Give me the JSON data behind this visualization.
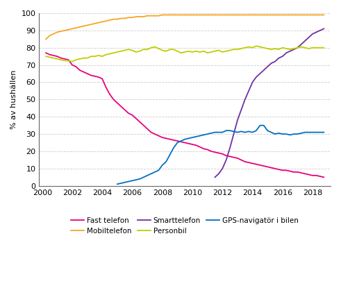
{
  "ylabel": "% av hushällen",
  "xlim": [
    1999.8,
    2019.2
  ],
  "ylim": [
    0,
    100
  ],
  "xticks": [
    2000,
    2002,
    2004,
    2006,
    2008,
    2010,
    2012,
    2014,
    2016,
    2018
  ],
  "yticks": [
    0,
    10,
    20,
    30,
    40,
    50,
    60,
    70,
    80,
    90,
    100
  ],
  "series": {
    "Fast telefon": {
      "color": "#E8007D",
      "data": [
        [
          2000.25,
          77
        ],
        [
          2000.5,
          76
        ],
        [
          2000.75,
          75.5
        ],
        [
          2001.0,
          75
        ],
        [
          2001.25,
          74
        ],
        [
          2001.5,
          73.5
        ],
        [
          2001.75,
          73
        ],
        [
          2002.0,
          70
        ],
        [
          2002.25,
          69
        ],
        [
          2002.5,
          67
        ],
        [
          2002.75,
          66
        ],
        [
          2003.0,
          65
        ],
        [
          2003.25,
          64
        ],
        [
          2003.5,
          63.5
        ],
        [
          2003.75,
          63
        ],
        [
          2004.0,
          62
        ],
        [
          2004.25,
          57
        ],
        [
          2004.5,
          53
        ],
        [
          2004.75,
          50
        ],
        [
          2005.0,
          48
        ],
        [
          2005.25,
          46
        ],
        [
          2005.5,
          44
        ],
        [
          2005.75,
          42
        ],
        [
          2006.0,
          41
        ],
        [
          2006.25,
          39
        ],
        [
          2006.5,
          37
        ],
        [
          2006.75,
          35
        ],
        [
          2007.0,
          33
        ],
        [
          2007.25,
          31
        ],
        [
          2007.5,
          30
        ],
        [
          2007.75,
          29
        ],
        [
          2008.0,
          28
        ],
        [
          2008.25,
          27.5
        ],
        [
          2008.5,
          27
        ],
        [
          2008.75,
          26.5
        ],
        [
          2009.0,
          26
        ],
        [
          2009.25,
          25.5
        ],
        [
          2009.5,
          25
        ],
        [
          2009.75,
          24.5
        ],
        [
          2010.0,
          24
        ],
        [
          2010.25,
          23.5
        ],
        [
          2010.5,
          22.5
        ],
        [
          2010.75,
          21.5
        ],
        [
          2011.0,
          21
        ],
        [
          2011.25,
          20
        ],
        [
          2011.5,
          19.5
        ],
        [
          2011.75,
          19
        ],
        [
          2012.0,
          18.5
        ],
        [
          2012.25,
          17.5
        ],
        [
          2012.5,
          17
        ],
        [
          2012.75,
          16.5
        ],
        [
          2013.0,
          16
        ],
        [
          2013.25,
          15
        ],
        [
          2013.5,
          14
        ],
        [
          2013.75,
          13.5
        ],
        [
          2014.0,
          13
        ],
        [
          2014.25,
          12.5
        ],
        [
          2014.5,
          12
        ],
        [
          2014.75,
          11.5
        ],
        [
          2015.0,
          11
        ],
        [
          2015.25,
          10.5
        ],
        [
          2015.5,
          10
        ],
        [
          2015.75,
          9.5
        ],
        [
          2016.0,
          9
        ],
        [
          2016.25,
          9
        ],
        [
          2016.5,
          8.5
        ],
        [
          2016.75,
          8
        ],
        [
          2017.0,
          8
        ],
        [
          2017.25,
          7.5
        ],
        [
          2017.5,
          7
        ],
        [
          2017.75,
          6.5
        ],
        [
          2018.0,
          6
        ],
        [
          2018.25,
          6
        ],
        [
          2018.5,
          5.5
        ],
        [
          2018.75,
          5
        ]
      ]
    },
    "Mobiltelefon": {
      "color": "#F5A623",
      "data": [
        [
          2000.25,
          85
        ],
        [
          2000.5,
          87
        ],
        [
          2000.75,
          88
        ],
        [
          2001.0,
          89
        ],
        [
          2001.25,
          89.5
        ],
        [
          2001.5,
          90
        ],
        [
          2001.75,
          90.5
        ],
        [
          2002.0,
          91
        ],
        [
          2002.25,
          91.5
        ],
        [
          2002.5,
          92
        ],
        [
          2002.75,
          92.5
        ],
        [
          2003.0,
          93
        ],
        [
          2003.25,
          93.5
        ],
        [
          2003.5,
          94
        ],
        [
          2003.75,
          94.5
        ],
        [
          2004.0,
          95
        ],
        [
          2004.25,
          95.5
        ],
        [
          2004.5,
          96
        ],
        [
          2004.75,
          96.5
        ],
        [
          2005.0,
          96.5
        ],
        [
          2005.25,
          97
        ],
        [
          2005.5,
          97
        ],
        [
          2005.75,
          97.5
        ],
        [
          2006.0,
          97.5
        ],
        [
          2006.25,
          98
        ],
        [
          2006.5,
          98
        ],
        [
          2006.75,
          98
        ],
        [
          2007.0,
          98.5
        ],
        [
          2007.25,
          98.5
        ],
        [
          2007.5,
          98.5
        ],
        [
          2007.75,
          98.5
        ],
        [
          2008.0,
          99
        ],
        [
          2008.25,
          99
        ],
        [
          2008.5,
          99
        ],
        [
          2008.75,
          99
        ],
        [
          2009.0,
          99
        ],
        [
          2009.25,
          99
        ],
        [
          2009.5,
          99
        ],
        [
          2009.75,
          99
        ],
        [
          2010.0,
          99
        ],
        [
          2010.25,
          99
        ],
        [
          2010.5,
          99
        ],
        [
          2010.75,
          99
        ],
        [
          2011.0,
          99
        ],
        [
          2011.25,
          99
        ],
        [
          2011.5,
          99
        ],
        [
          2011.75,
          99
        ],
        [
          2012.0,
          99
        ],
        [
          2012.25,
          99
        ],
        [
          2012.5,
          99
        ],
        [
          2012.75,
          99
        ],
        [
          2013.0,
          99
        ],
        [
          2013.25,
          99
        ],
        [
          2013.5,
          99
        ],
        [
          2013.75,
          99
        ],
        [
          2014.0,
          99
        ],
        [
          2014.25,
          99
        ],
        [
          2014.5,
          99
        ],
        [
          2014.75,
          99
        ],
        [
          2015.0,
          99
        ],
        [
          2015.25,
          99
        ],
        [
          2015.5,
          99
        ],
        [
          2015.75,
          99
        ],
        [
          2016.0,
          99
        ],
        [
          2016.25,
          99
        ],
        [
          2016.5,
          99
        ],
        [
          2016.75,
          99
        ],
        [
          2017.0,
          99
        ],
        [
          2017.25,
          99
        ],
        [
          2017.5,
          99
        ],
        [
          2017.75,
          99
        ],
        [
          2018.0,
          99
        ],
        [
          2018.25,
          99
        ],
        [
          2018.5,
          99
        ],
        [
          2018.75,
          99
        ]
      ]
    },
    "Smarttelefon": {
      "color": "#7030A0",
      "data": [
        [
          2011.5,
          5
        ],
        [
          2011.75,
          7
        ],
        [
          2012.0,
          10
        ],
        [
          2012.25,
          15
        ],
        [
          2012.5,
          22
        ],
        [
          2012.75,
          30
        ],
        [
          2013.0,
          38
        ],
        [
          2013.25,
          44
        ],
        [
          2013.5,
          50
        ],
        [
          2013.75,
          55
        ],
        [
          2014.0,
          60
        ],
        [
          2014.25,
          63
        ],
        [
          2014.5,
          65
        ],
        [
          2014.75,
          67
        ],
        [
          2015.0,
          69
        ],
        [
          2015.25,
          71
        ],
        [
          2015.5,
          72
        ],
        [
          2015.75,
          74
        ],
        [
          2016.0,
          75
        ],
        [
          2016.25,
          77
        ],
        [
          2016.5,
          78
        ],
        [
          2016.75,
          79
        ],
        [
          2017.0,
          80
        ],
        [
          2017.25,
          82
        ],
        [
          2017.5,
          84
        ],
        [
          2017.75,
          86
        ],
        [
          2018.0,
          88
        ],
        [
          2018.25,
          89
        ],
        [
          2018.5,
          90
        ],
        [
          2018.75,
          91
        ]
      ]
    },
    "Personbil": {
      "color": "#BFCE00",
      "data": [
        [
          2000.25,
          75
        ],
        [
          2000.5,
          74.5
        ],
        [
          2000.75,
          74
        ],
        [
          2001.0,
          73.5
        ],
        [
          2001.25,
          73
        ],
        [
          2001.5,
          72.5
        ],
        [
          2001.75,
          72.5
        ],
        [
          2002.0,
          72
        ],
        [
          2002.25,
          73
        ],
        [
          2002.5,
          73.5
        ],
        [
          2002.75,
          74
        ],
        [
          2003.0,
          74
        ],
        [
          2003.25,
          75
        ],
        [
          2003.5,
          75
        ],
        [
          2003.75,
          75.5
        ],
        [
          2004.0,
          75
        ],
        [
          2004.25,
          76
        ],
        [
          2004.5,
          76.5
        ],
        [
          2004.75,
          77
        ],
        [
          2005.0,
          77.5
        ],
        [
          2005.25,
          78
        ],
        [
          2005.5,
          78.5
        ],
        [
          2005.75,
          79
        ],
        [
          2006.0,
          78.5
        ],
        [
          2006.25,
          77.5
        ],
        [
          2006.5,
          78
        ],
        [
          2006.75,
          79
        ],
        [
          2007.0,
          79
        ],
        [
          2007.25,
          80
        ],
        [
          2007.5,
          80.5
        ],
        [
          2007.75,
          79.5
        ],
        [
          2008.0,
          78.5
        ],
        [
          2008.25,
          78
        ],
        [
          2008.5,
          79
        ],
        [
          2008.75,
          79
        ],
        [
          2009.0,
          78
        ],
        [
          2009.25,
          77
        ],
        [
          2009.5,
          77.5
        ],
        [
          2009.75,
          78
        ],
        [
          2010.0,
          77.5
        ],
        [
          2010.25,
          78
        ],
        [
          2010.5,
          77.5
        ],
        [
          2010.75,
          78
        ],
        [
          2011.0,
          77
        ],
        [
          2011.25,
          77.5
        ],
        [
          2011.5,
          78
        ],
        [
          2011.75,
          78.5
        ],
        [
          2012.0,
          77.5
        ],
        [
          2012.25,
          78
        ],
        [
          2012.5,
          78.5
        ],
        [
          2012.75,
          79
        ],
        [
          2013.0,
          79
        ],
        [
          2013.25,
          79.5
        ],
        [
          2013.5,
          80
        ],
        [
          2013.75,
          80.5
        ],
        [
          2014.0,
          80
        ],
        [
          2014.25,
          81
        ],
        [
          2014.5,
          80.5
        ],
        [
          2014.75,
          80
        ],
        [
          2015.0,
          79.5
        ],
        [
          2015.25,
          79
        ],
        [
          2015.5,
          79.5
        ],
        [
          2015.75,
          79
        ],
        [
          2016.0,
          80
        ],
        [
          2016.25,
          79.5
        ],
        [
          2016.5,
          79
        ],
        [
          2016.75,
          79.5
        ],
        [
          2017.0,
          80
        ],
        [
          2017.25,
          80.5
        ],
        [
          2017.5,
          80
        ],
        [
          2017.75,
          79.5
        ],
        [
          2018.0,
          80
        ],
        [
          2018.25,
          80
        ],
        [
          2018.5,
          80
        ],
        [
          2018.75,
          80
        ]
      ]
    },
    "GPS-navigatör i bilen": {
      "color": "#0070C0",
      "data": [
        [
          2005.0,
          1
        ],
        [
          2005.25,
          1.5
        ],
        [
          2005.5,
          2
        ],
        [
          2005.75,
          2.5
        ],
        [
          2006.0,
          3
        ],
        [
          2006.25,
          3.5
        ],
        [
          2006.5,
          4
        ],
        [
          2006.75,
          5
        ],
        [
          2007.0,
          6
        ],
        [
          2007.25,
          7
        ],
        [
          2007.5,
          8
        ],
        [
          2007.75,
          9
        ],
        [
          2008.0,
          12
        ],
        [
          2008.25,
          14
        ],
        [
          2008.5,
          18
        ],
        [
          2008.75,
          22
        ],
        [
          2009.0,
          25
        ],
        [
          2009.25,
          26
        ],
        [
          2009.5,
          27
        ],
        [
          2009.75,
          27.5
        ],
        [
          2010.0,
          28
        ],
        [
          2010.25,
          28.5
        ],
        [
          2010.5,
          29
        ],
        [
          2010.75,
          29.5
        ],
        [
          2011.0,
          30
        ],
        [
          2011.25,
          30.5
        ],
        [
          2011.5,
          31
        ],
        [
          2011.75,
          31
        ],
        [
          2012.0,
          31
        ],
        [
          2012.25,
          32
        ],
        [
          2012.5,
          32
        ],
        [
          2012.75,
          31.5
        ],
        [
          2013.0,
          31
        ],
        [
          2013.25,
          31.5
        ],
        [
          2013.5,
          31
        ],
        [
          2013.75,
          31.5
        ],
        [
          2014.0,
          31
        ],
        [
          2014.25,
          32
        ],
        [
          2014.5,
          35
        ],
        [
          2014.75,
          35
        ],
        [
          2015.0,
          32
        ],
        [
          2015.25,
          31
        ],
        [
          2015.5,
          30
        ],
        [
          2015.75,
          30.5
        ],
        [
          2016.0,
          30
        ],
        [
          2016.25,
          30
        ],
        [
          2016.5,
          29.5
        ],
        [
          2016.75,
          30
        ],
        [
          2017.0,
          30
        ],
        [
          2017.25,
          30.5
        ],
        [
          2017.5,
          31
        ],
        [
          2017.75,
          31
        ],
        [
          2018.0,
          31
        ],
        [
          2018.25,
          31
        ],
        [
          2018.5,
          31
        ],
        [
          2018.75,
          31
        ]
      ]
    }
  },
  "legend_order": [
    "Fast telefon",
    "Mobiltelefon",
    "Smarttelefon",
    "Personbil",
    "GPS-navigatör i bilen"
  ]
}
